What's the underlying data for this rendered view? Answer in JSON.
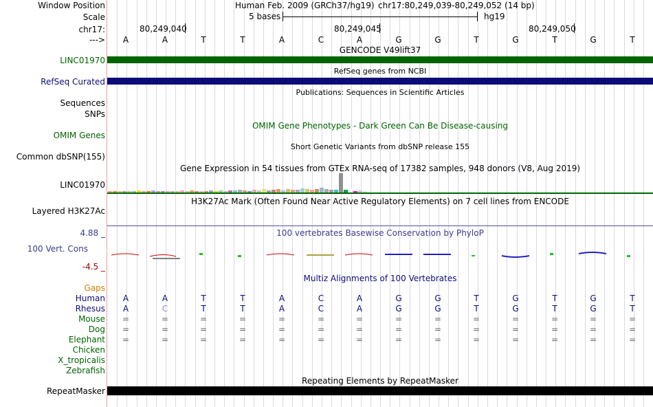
{
  "header": {
    "window_position_label": "Window Position",
    "scale_label": "Scale",
    "chrom_label": "chr17:",
    "strand_label": "--->",
    "assembly_text": "Human Feb. 2009 (GRCh37/hg19)",
    "position_text": "chr17:80,249,039-80,249,052 (14 bp)",
    "scale_text": "5 bases",
    "db_text": "hg19",
    "coords": [
      "80,249,040",
      "80,249,045",
      "80,249,050"
    ]
  },
  "bases": [
    "A",
    "A",
    "T",
    "T",
    "A",
    "C",
    "A",
    "G",
    "G",
    "T",
    "G",
    "T",
    "G",
    "T"
  ],
  "tracks": {
    "gencode": {
      "title": "GENCODE V49lift37",
      "label": "LINC01970",
      "color": "#006400"
    },
    "refseq": {
      "title": "RefSeq genes from NCBI",
      "label": "RefSeq Curated",
      "color": "#0c0c78"
    },
    "publications": {
      "title": "Publications: Sequences in Scientific Articles",
      "label1": "Sequences",
      "label2": "SNPs"
    },
    "omim": {
      "title": "OMIM Gene Phenotypes - Dark Green Can Be Disease-causing",
      "label": "OMIM Genes",
      "color": "#006400"
    },
    "dbsnp": {
      "title": "Short Genetic Variants from dbSNP release 155",
      "label": "Common dbSNP(155)"
    },
    "gtex": {
      "title": "Gene Expression in 54 tissues from GTEx RNA-seq of 17382 samples, 948 donors (V8, Aug 2019)",
      "label": "LINC01970"
    },
    "h3k27ac": {
      "title": "H3K27Ac Mark (Often Found Near Active Regulatory Elements) on 7 cell lines from ENCODE",
      "label": "Layered H3K27Ac"
    },
    "phylop": {
      "title": "100 vertebrates Basewise Conservation by PhyloP",
      "label": "100 Vert. Cons",
      "max": "4.88 _",
      "min": "-4.5 _",
      "color": "#3a3a90"
    },
    "multiz": {
      "title": "Multiz Alignments of 100 Vertebrates",
      "gaps_label": "Gaps",
      "species": [
        "Human",
        "Rhesus",
        "Mouse",
        "Dog",
        "Elephant",
        "Chicken",
        "X_tropicalis",
        "Zebrafish"
      ],
      "human": [
        "A",
        "A",
        "T",
        "T",
        "A",
        "C",
        "A",
        "G",
        "G",
        "T",
        "G",
        "T",
        "G",
        "T"
      ],
      "rhesus": [
        "A",
        "C",
        "T",
        "T",
        "A",
        "C",
        "A",
        "G",
        "G",
        "T",
        "G",
        "T",
        "G",
        "T"
      ],
      "eq": "="
    },
    "repeatmasker": {
      "title": "Repeating Elements by RepeatMasker",
      "label": "RepeatMasker"
    }
  }
}
